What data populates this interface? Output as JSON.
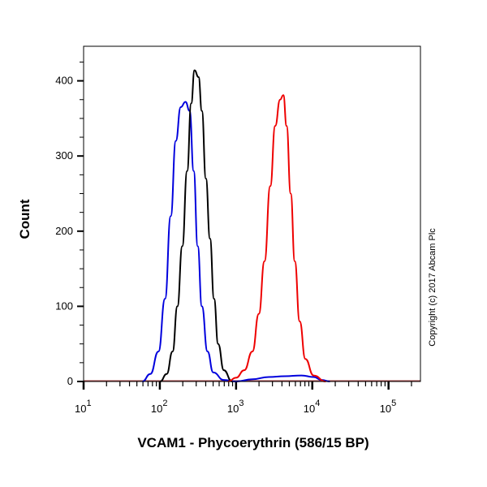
{
  "chart_data": {
    "type": "line",
    "title": "",
    "xlabel": "VCAM1 - Phycoerythrin (586/15 BP)",
    "ylabel": "Count",
    "xscale": "log",
    "xlim": [
      10,
      262143
    ],
    "ylim": [
      0,
      446
    ],
    "x_ticks": [
      {
        "base": "10",
        "exp": "1",
        "value": 10
      },
      {
        "base": "10",
        "exp": "2",
        "value": 100
      },
      {
        "base": "10",
        "exp": "3",
        "value": 1000
      },
      {
        "base": "10",
        "exp": "4",
        "value": 10000
      },
      {
        "base": "10",
        "exp": "5",
        "value": 100000
      }
    ],
    "y_ticks": [
      {
        "label": "0",
        "value": 0
      },
      {
        "label": "100",
        "value": 100
      },
      {
        "label": "200",
        "value": 200
      },
      {
        "label": "300",
        "value": 300
      },
      {
        "label": "400",
        "value": 400
      }
    ],
    "grid": false,
    "legend": "none",
    "annotation": "Copyright (c) 2017 Abcam Plc",
    "series": [
      {
        "color": "#0000dd",
        "x": [
          59,
          75,
          96,
          117,
          139,
          162,
          188,
          217,
          246,
          278,
          314,
          356,
          422,
          502,
          691,
          1000,
          1640,
          2680,
          4380,
          7180,
          10400,
          13300,
          17000
        ],
        "y": [
          0,
          10,
          40,
          110,
          220,
          320,
          365,
          372,
          360,
          280,
          180,
          100,
          40,
          12,
          2,
          0,
          3,
          6,
          7,
          8,
          6,
          2,
          0
        ]
      },
      {
        "color": "#000000",
        "x": [
          101,
          123,
          147,
          170,
          197,
          228,
          258,
          285,
          322,
          356,
          402,
          455,
          514,
          582,
          691,
          885
        ],
        "y": [
          0,
          10,
          40,
          100,
          180,
          280,
          370,
          414,
          405,
          360,
          270,
          190,
          110,
          50,
          15,
          0
        ]
      },
      {
        "color": "#ee0000",
        "x": [
          782,
          1000,
          1280,
          1640,
          1990,
          2360,
          2810,
          3260,
          3780,
          4170,
          4600,
          5210,
          5890,
          6830,
          8110,
          10400,
          15000
        ],
        "y": [
          0,
          5,
          15,
          40,
          90,
          160,
          260,
          340,
          375,
          381,
          340,
          250,
          160,
          80,
          30,
          8,
          0
        ]
      }
    ]
  }
}
